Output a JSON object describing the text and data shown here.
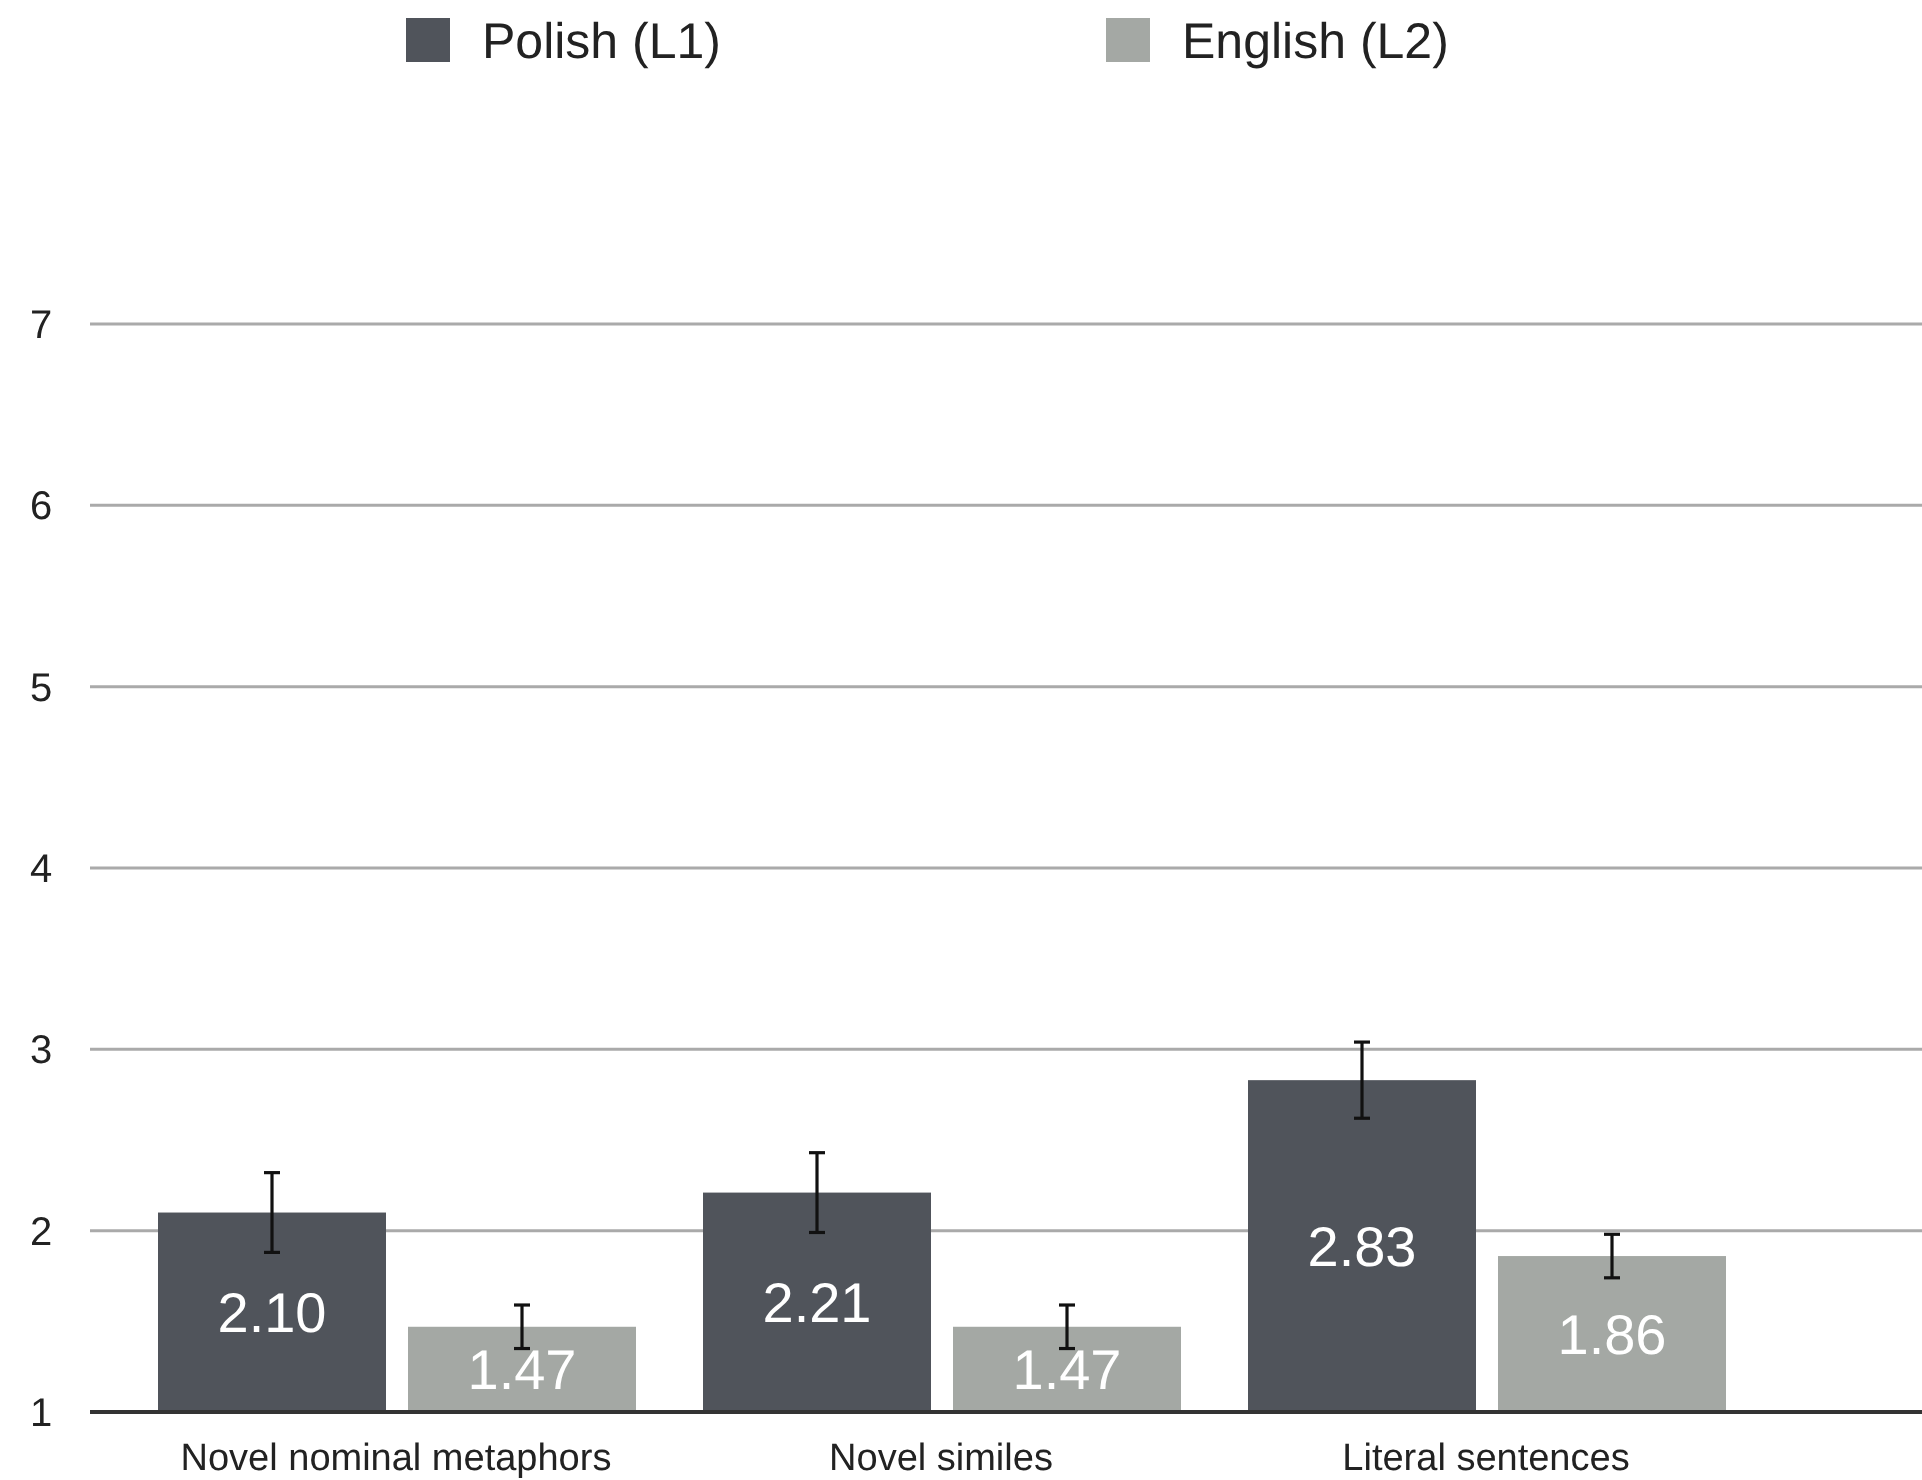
{
  "chart_data": {
    "type": "bar",
    "categories": [
      "Novel nominal metaphors",
      "Novel similes",
      "Literal sentences"
    ],
    "series": [
      {
        "name": "Polish (L1)",
        "color": "#50545b",
        "values": [
          2.1,
          2.21,
          2.83
        ],
        "value_labels": [
          "2.10",
          "2.21",
          "2.83"
        ],
        "errors": [
          0.22,
          0.22,
          0.21
        ]
      },
      {
        "name": "English (L2)",
        "color": "#a4a8a4",
        "values": [
          1.47,
          1.47,
          1.86
        ],
        "value_labels": [
          "1.47",
          "1.47",
          "1.86"
        ],
        "errors": [
          0.12,
          0.12,
          0.12
        ]
      }
    ],
    "ylim": [
      1,
      7
    ],
    "yticks": [
      1,
      2,
      3,
      4,
      5,
      6,
      7
    ],
    "grid": "y",
    "legend": "top"
  }
}
